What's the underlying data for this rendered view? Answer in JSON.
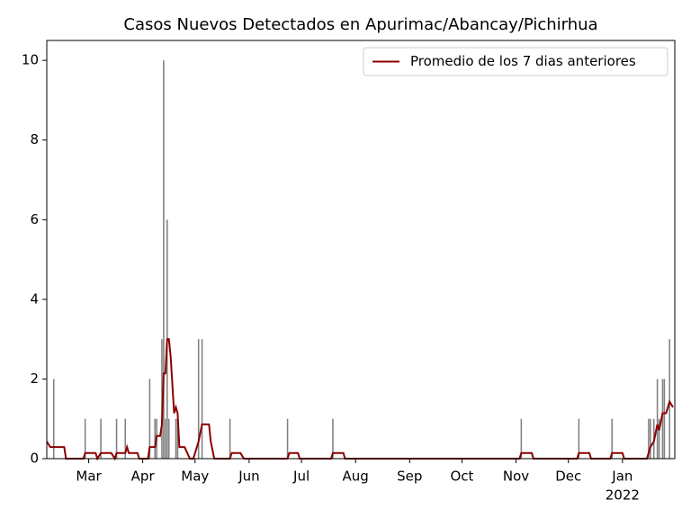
{
  "chart_data": {
    "type": "bar",
    "title": "Casos Nuevos Detectados en Apurimac/Abancay/Pichirhua",
    "xlim": [
      "2021-02-05",
      "2022-01-31"
    ],
    "xticks": [
      {
        "value": "2021-03-01",
        "label": "Mar"
      },
      {
        "value": "2021-04-01",
        "label": "Apr"
      },
      {
        "value": "2021-05-01",
        "label": "May"
      },
      {
        "value": "2021-06-01",
        "label": "Jun"
      },
      {
        "value": "2021-07-01",
        "label": "Jul"
      },
      {
        "value": "2021-08-01",
        "label": "Aug"
      },
      {
        "value": "2021-09-01",
        "label": "Sep"
      },
      {
        "value": "2021-10-01",
        "label": "Oct"
      },
      {
        "value": "2021-11-01",
        "label": "Nov"
      },
      {
        "value": "2021-12-01",
        "label": "Dec"
      },
      {
        "value": "2022-01-01",
        "label": "Jan",
        "sublabel": "2022"
      }
    ],
    "ylim": [
      0,
      10.5
    ],
    "yticks": [
      0,
      2,
      4,
      6,
      8,
      10
    ],
    "legend": "upper right",
    "series": [
      {
        "type": "bar",
        "color": "#808080",
        "x": [
          "2021-02-09",
          "2021-02-27",
          "2021-03-08",
          "2021-03-17",
          "2021-03-22",
          "2021-04-05",
          "2021-04-08",
          "2021-04-09",
          "2021-04-12",
          "2021-04-13",
          "2021-04-14",
          "2021-04-15",
          "2021-04-16",
          "2021-04-20",
          "2021-04-21",
          "2021-05-03",
          "2021-05-05",
          "2021-05-21",
          "2021-06-23",
          "2021-07-19",
          "2021-11-04",
          "2021-12-07",
          "2021-12-26",
          "2022-01-16",
          "2022-01-17",
          "2022-01-19",
          "2022-01-21",
          "2022-01-22",
          "2022-01-24",
          "2022-01-25",
          "2022-01-28"
        ],
        "values": [
          2,
          1,
          1,
          1,
          1,
          2,
          1,
          1,
          3,
          10,
          1,
          6,
          1,
          1,
          1,
          3,
          3,
          1,
          1,
          1,
          1,
          1,
          1,
          1,
          1,
          1,
          2,
          1,
          2,
          2,
          3
        ]
      },
      {
        "type": "line",
        "name": "Promedio de los 7 dias anteriores",
        "color": "#8b0000",
        "x": [
          "2021-02-05",
          "2021-02-07",
          "2021-02-15",
          "2021-02-16",
          "2021-02-26",
          "2021-02-27",
          "2021-03-05",
          "2021-03-06",
          "2021-03-08",
          "2021-03-14",
          "2021-03-16",
          "2021-03-17",
          "2021-03-22",
          "2021-03-23",
          "2021-03-24",
          "2021-03-29",
          "2021-03-30",
          "2021-04-04",
          "2021-04-05",
          "2021-04-08",
          "2021-04-09",
          "2021-04-11",
          "2021-04-12",
          "2021-04-13",
          "2021-04-14",
          "2021-04-15",
          "2021-04-16",
          "2021-04-17",
          "2021-04-19",
          "2021-04-20",
          "2021-04-21",
          "2021-04-22",
          "2021-04-25",
          "2021-04-28",
          "2021-04-30",
          "2021-05-03",
          "2021-05-05",
          "2021-05-09",
          "2021-05-10",
          "2021-05-12",
          "2021-05-21",
          "2021-05-22",
          "2021-05-27",
          "2021-05-29",
          "2021-06-23",
          "2021-06-24",
          "2021-06-29",
          "2021-06-30",
          "2021-07-18",
          "2021-07-19",
          "2021-07-25",
          "2021-07-26",
          "2021-11-03",
          "2021-11-04",
          "2021-11-10",
          "2021-11-11",
          "2021-12-06",
          "2021-12-07",
          "2021-12-13",
          "2021-12-14",
          "2021-12-25",
          "2021-12-26",
          "2022-01-01",
          "2022-01-02",
          "2022-01-15",
          "2022-01-17",
          "2022-01-19",
          "2022-01-21",
          "2022-01-22",
          "2022-01-24",
          "2022-01-26",
          "2022-01-28",
          "2022-01-30"
        ],
        "values": [
          0.43,
          0.29,
          0.29,
          0,
          0,
          0.14,
          0.14,
          0,
          0.14,
          0.14,
          0,
          0.14,
          0.14,
          0.29,
          0.14,
          0.14,
          0,
          0,
          0.29,
          0.29,
          0.57,
          0.57,
          0.86,
          2.14,
          2.14,
          3.0,
          3.0,
          2.57,
          1.14,
          1.29,
          1.14,
          0.29,
          0.29,
          0,
          0,
          0.43,
          0.86,
          0.86,
          0.43,
          0,
          0,
          0.14,
          0.14,
          0,
          0,
          0.14,
          0.14,
          0,
          0,
          0.14,
          0.14,
          0,
          0,
          0.14,
          0.14,
          0,
          0,
          0.14,
          0.14,
          0,
          0,
          0.14,
          0.14,
          0,
          0,
          0.29,
          0.43,
          0.86,
          0.71,
          1.14,
          1.14,
          1.43,
          1.29
        ]
      }
    ]
  }
}
